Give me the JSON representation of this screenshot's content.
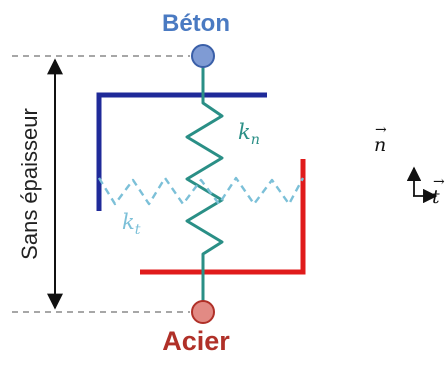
{
  "labels": {
    "top_material": "Béton",
    "bottom_material": "Acier",
    "thickness": "Sans épaisseur",
    "normal_stiffness": {
      "symbol": "k",
      "subscript": "n"
    },
    "tangential_stiffness": {
      "symbol": "k",
      "subscript": "t"
    },
    "normal_axis": "n",
    "tangent_axis": "t"
  },
  "colors": {
    "beton": "#4a7ac2",
    "acier": "#b03028",
    "beton_plate": "#1f2a99",
    "acier_plate": "#e01b1b",
    "normal_spring": "#2a8f86",
    "tangential_spring": "#7cc0d8"
  },
  "icons": {
    "node": "circle",
    "axis": "arrow"
  }
}
